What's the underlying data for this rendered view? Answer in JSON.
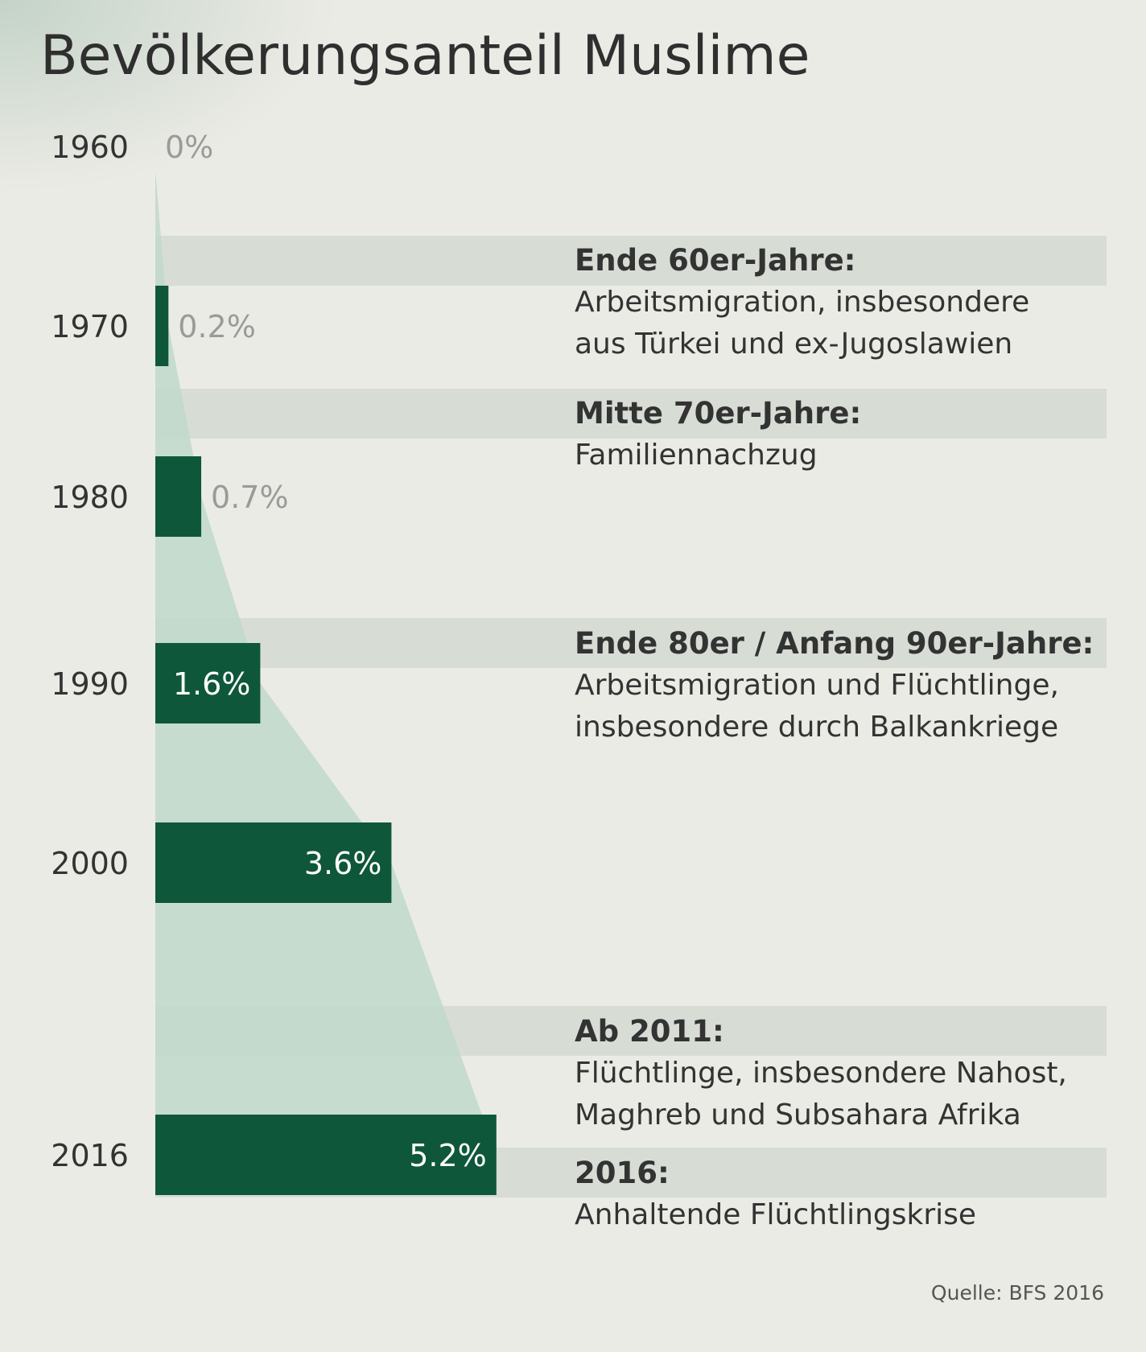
{
  "chart_data": {
    "type": "bar",
    "orientation": "horizontal",
    "title": "Bevölkerungsanteil Muslime",
    "categories": [
      "1960",
      "1970",
      "1980",
      "1990",
      "2000",
      "2016"
    ],
    "values": [
      0,
      0.2,
      0.7,
      1.6,
      3.6,
      5.2
    ],
    "value_labels": [
      "0%",
      "0.2%",
      "0.7%",
      "1.6%",
      "3.6%",
      "5.2%"
    ],
    "unit": "%",
    "xlim": [
      0,
      5.6
    ],
    "grid": false,
    "legend": "none",
    "annotations": [
      {
        "heading": "Ende 60er-Jahre:",
        "lines": [
          "Arbeitsmigration, insbesondere",
          "aus Türkei und ex-Jugoslawien"
        ]
      },
      {
        "heading": "Mitte 70er-Jahre:",
        "lines": [
          "Familiennachzug"
        ]
      },
      {
        "heading": "Ende 80er / Anfang 90er-Jahre:",
        "lines": [
          "Arbeitsmigration und Flüchtlinge,",
          "insbesondere durch Balkankriege"
        ]
      },
      {
        "heading": "Ab 2011:",
        "lines": [
          "Flüchtlinge, insbesondere Nahost,",
          "Maghreb und Subsahara Afrika"
        ]
      },
      {
        "heading": "2016:",
        "lines": [
          "Anhaltende Flüchtlingskrise"
        ]
      }
    ],
    "source": "Quelle: BFS 2016"
  },
  "colors": {
    "bar": "#0f573a",
    "area": "#bfd9ca",
    "band": "#d7ddd5",
    "background": "#ebebe5",
    "label_outside": "#9a9a9a",
    "label_inside": "#ffffff"
  }
}
